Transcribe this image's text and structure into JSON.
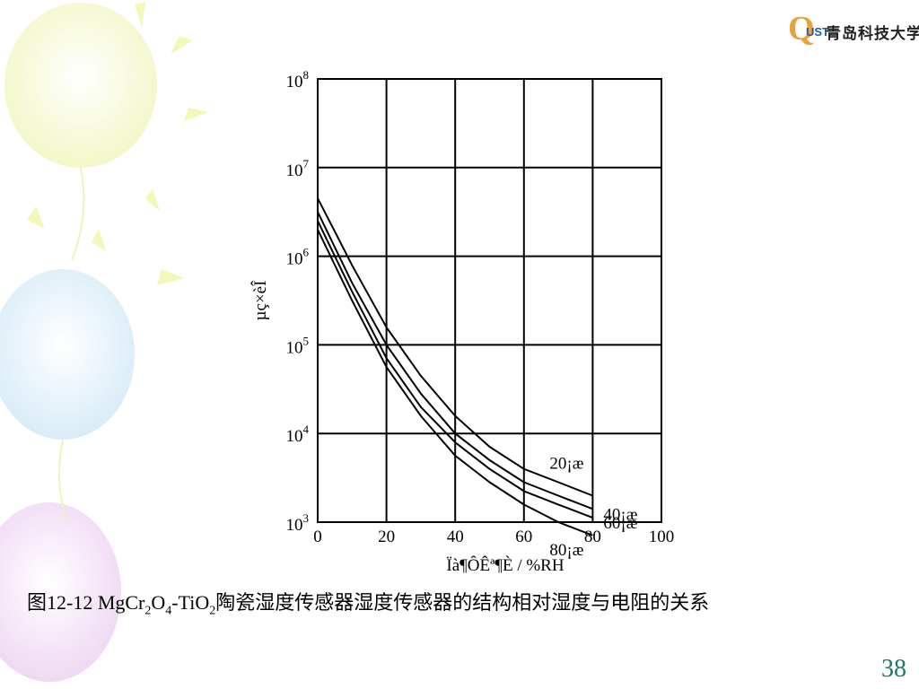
{
  "logo": {
    "mark_q": "Q",
    "mark_ust": "UST",
    "university_name": "青岛科技大学"
  },
  "chart_data": {
    "type": "line",
    "xlabel": "Ïà¶ÔÊª¶È / %RH",
    "ylabel": "µç×èÎ",
    "xlim": [
      0,
      100
    ],
    "ylim": [
      1000,
      100000000
    ],
    "y_scale": "log",
    "x_ticks": [
      "0",
      "20",
      "40",
      "60",
      "80",
      "100"
    ],
    "y_ticks": [
      {
        "base": "10",
        "exp": "3"
      },
      {
        "base": "10",
        "exp": "4"
      },
      {
        "base": "10",
        "exp": "5"
      },
      {
        "base": "10",
        "exp": "6"
      },
      {
        "base": "10",
        "exp": "7"
      },
      {
        "base": "10",
        "exp": "8"
      }
    ],
    "grid": true,
    "series": [
      {
        "name": "20¡æ",
        "x": [
          0,
          5,
          10,
          20,
          30,
          40,
          50,
          60,
          70,
          80
        ],
        "y": [
          4500000,
          1900000,
          790000,
          158000,
          44700,
          15800,
          7080,
          3980,
          2820,
          1990
        ]
      },
      {
        "name": "40¡æ",
        "x": [
          0,
          5,
          10,
          20,
          30,
          40,
          50,
          60,
          70,
          80
        ],
        "y": [
          3160000,
          1260000,
          500000,
          100000,
          28200,
          10000,
          5010,
          2820,
          1990,
          1410
        ]
      },
      {
        "name": "60¡æ",
        "x": [
          0,
          5,
          10,
          20,
          30,
          40,
          50,
          60,
          70,
          80
        ],
        "y": [
          2510000,
          1000000,
          398000,
          70800,
          19900,
          7940,
          3980,
          2240,
          1580,
          1120
        ]
      },
      {
        "name": "80¡æ",
        "x": [
          0,
          5,
          10,
          20,
          30,
          40,
          50,
          60,
          70,
          80
        ],
        "y": [
          2000000,
          794000,
          316000,
          56200,
          15800,
          5620,
          2820,
          1580,
          1000,
          708
        ]
      }
    ]
  },
  "caption": {
    "prefix": "图12-12  MgCr",
    "sub1": "2",
    "mid1": "O",
    "sub2": "4",
    "mid2": "-TiO",
    "sub3": "2",
    "suffix": "陶瓷湿度传感器湿度传感器的结构相对湿度与电阻的关系"
  },
  "page_number": "38"
}
